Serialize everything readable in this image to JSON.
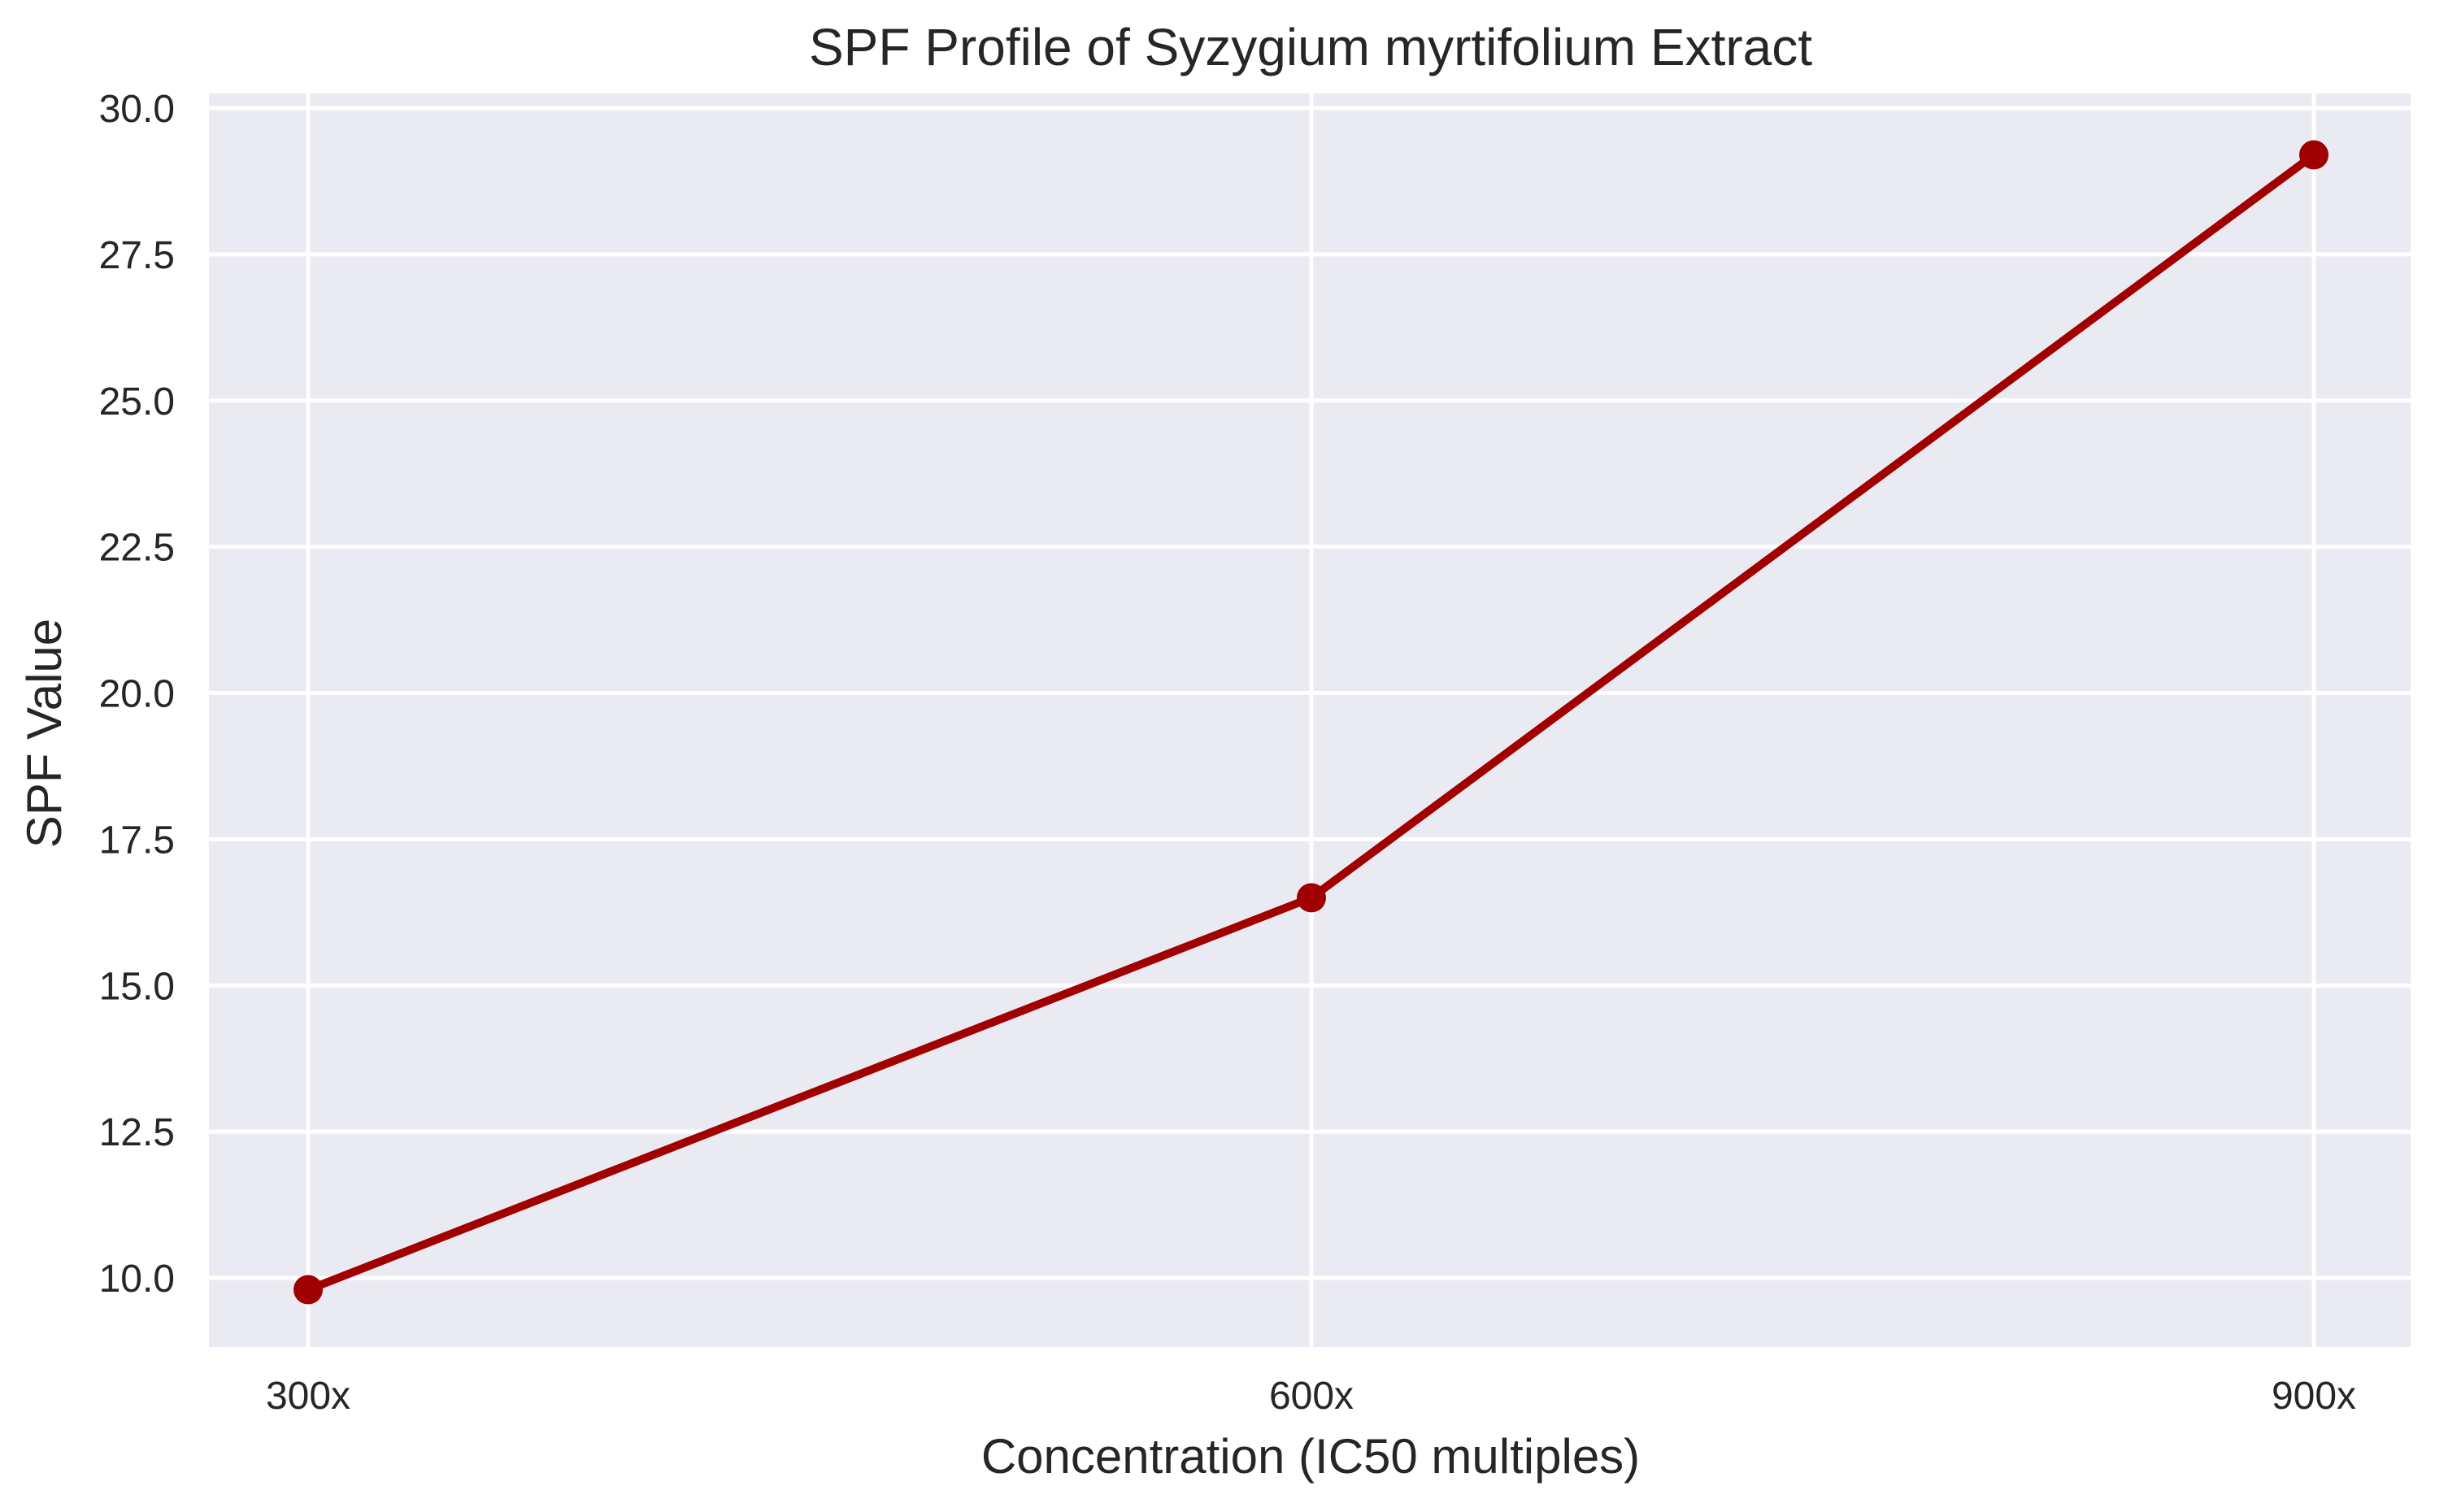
{
  "chart_data": {
    "type": "line",
    "title": "SPF Profile of Syzygium myrtifolium Extract",
    "xlabel": "Concentration (IC50 multiples)",
    "ylabel": "SPF Value",
    "categories": [
      "300x",
      "600x",
      "900x"
    ],
    "series": [
      {
        "name": "SPF",
        "values": [
          9.8,
          16.5,
          29.2
        ],
        "color": "#A00000",
        "marker": "circle"
      }
    ],
    "yticks": [
      10.0,
      12.5,
      15.0,
      17.5,
      20.0,
      22.5,
      25.0,
      27.5,
      30.0
    ],
    "ytick_labels": [
      "10.0",
      "12.5",
      "15.0",
      "17.5",
      "20.0",
      "22.5",
      "25.0",
      "27.5",
      "30.0"
    ],
    "ylim": [
      8.82,
      30.25
    ],
    "grid": true,
    "legend": null,
    "style": {
      "plot_background": "#EAEAF2",
      "grid_color": "#FFFFFF",
      "line_color": "#A00000"
    }
  }
}
